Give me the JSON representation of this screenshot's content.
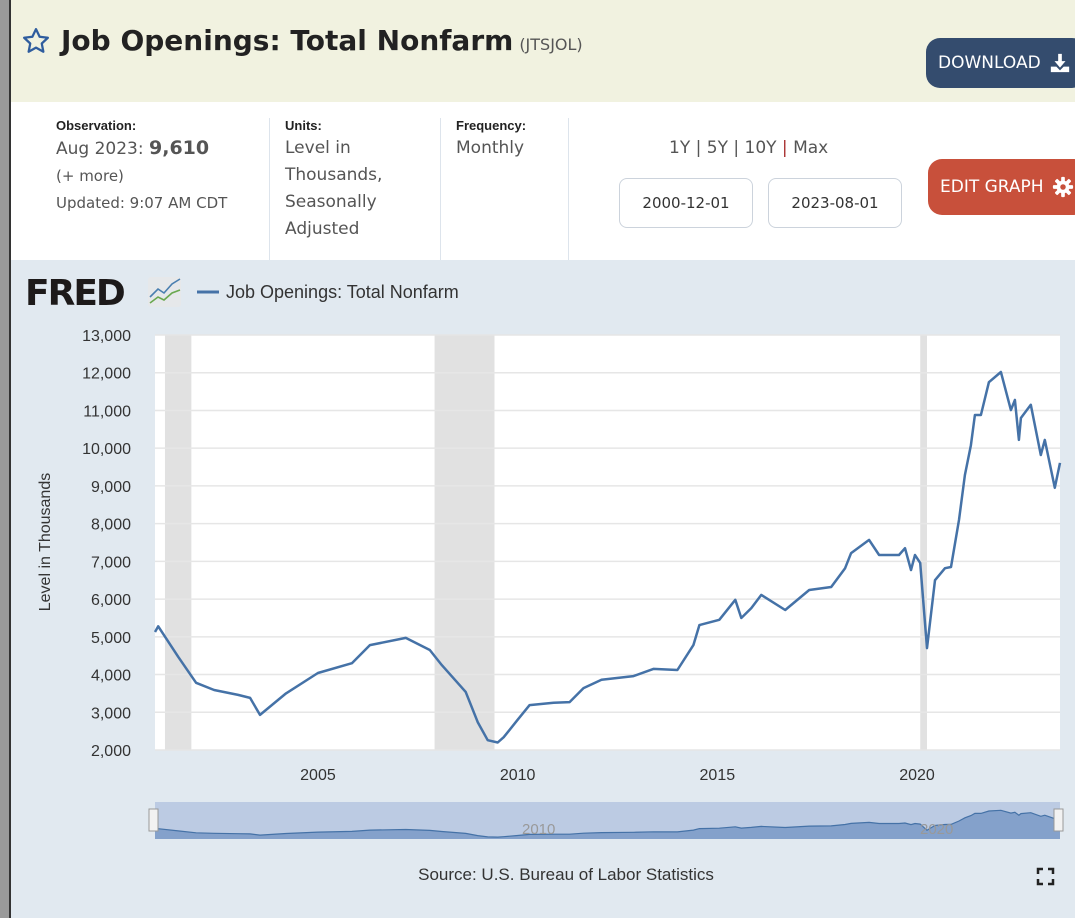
{
  "header": {
    "title": "Job Openings: Total Nonfarm",
    "series_id": "(JTSJOL)",
    "download_label": "DOWNLOAD",
    "edit_graph_label": "EDIT GRAPH"
  },
  "info": {
    "observation_label": "Observation:",
    "observation_date": "Aug 2023:",
    "observation_value": "9,610",
    "more_link": "(+ more)",
    "updated": "Updated: 9:07 AM CDT",
    "units_label": "Units:",
    "units_lines": [
      "Level in",
      "Thousands,",
      "Seasonally",
      "Adjusted"
    ],
    "frequency_label": "Frequency:",
    "frequency_value": "Monthly"
  },
  "range": {
    "options": [
      "1Y",
      "5Y",
      "10Y",
      "Max"
    ],
    "separator": " | ",
    "start_date": "2000-12-01",
    "end_date": "2023-08-01"
  },
  "chart": {
    "logo": "FRED",
    "legend": "Job Openings: Total Nonfarm",
    "source": "Source: U.S. Bureau of Labor Statistics",
    "navigator_labels": [
      "2010",
      "2020"
    ]
  },
  "colors": {
    "line": "#4572a7",
    "recession": "#e1e1e1",
    "download": "#344c6e",
    "edit": "#c8503b"
  },
  "chart_data": {
    "type": "line",
    "title": "Job Openings: Total Nonfarm",
    "xlabel": "",
    "ylabel": "Level in Thousands",
    "xlim": [
      2000.92,
      2023.58
    ],
    "ylim": [
      2000,
      13000
    ],
    "yticks": [
      2000,
      3000,
      4000,
      5000,
      6000,
      7000,
      8000,
      9000,
      10000,
      11000,
      12000,
      13000
    ],
    "ytick_labels": [
      "2,000",
      "3,000",
      "4,000",
      "5,000",
      "6,000",
      "7,000",
      "8,000",
      "9,000",
      "10,000",
      "11,000",
      "12,000",
      "13,000"
    ],
    "xticks": [
      2005,
      2010,
      2015,
      2020
    ],
    "xtick_labels": [
      "2005",
      "2010",
      "2015",
      "2020"
    ],
    "grid": true,
    "legend_position": "top-left",
    "recessions": [
      [
        2001.17,
        2001.83
      ],
      [
        2007.92,
        2009.42
      ],
      [
        2020.08,
        2020.25
      ]
    ],
    "series": [
      {
        "name": "Job Openings: Total Nonfarm",
        "x": [
          2000.92,
          2001.0,
          2001.5,
          2001.95,
          2002.4,
          2003.0,
          2003.3,
          2003.55,
          2004.2,
          2005.0,
          2005.85,
          2006.3,
          2007.2,
          2007.8,
          2008.1,
          2008.7,
          2009.0,
          2009.25,
          2009.5,
          2009.65,
          2010.0,
          2010.3,
          2010.9,
          2011.3,
          2011.65,
          2012.1,
          2012.9,
          2013.4,
          2014.0,
          2014.4,
          2014.55,
          2015.05,
          2015.45,
          2015.6,
          2015.85,
          2016.1,
          2016.7,
          2017.3,
          2017.85,
          2018.2,
          2018.35,
          2018.8,
          2019.05,
          2019.55,
          2019.7,
          2019.85,
          2019.95,
          2020.08,
          2020.25,
          2020.45,
          2020.7,
          2020.85,
          2021.05,
          2021.2,
          2021.35,
          2021.45,
          2021.6,
          2021.8,
          2022.1,
          2022.35,
          2022.45,
          2022.55,
          2022.6,
          2022.85,
          2023.1,
          2023.2,
          2023.45,
          2023.58
        ],
        "values": [
          5128,
          5280,
          4470,
          3780,
          3590,
          3460,
          3380,
          2930,
          3500,
          4040,
          4300,
          4780,
          4970,
          4650,
          4250,
          3540,
          2740,
          2260,
          2200,
          2340,
          2800,
          3190,
          3250,
          3270,
          3640,
          3860,
          3960,
          4150,
          4120,
          4780,
          5310,
          5450,
          5980,
          5500,
          5760,
          6110,
          5710,
          6240,
          6320,
          6820,
          7220,
          7570,
          7170,
          7170,
          7350,
          6770,
          7170,
          6960,
          4700,
          6500,
          6820,
          6850,
          8100,
          9290,
          10080,
          10880,
          10880,
          11750,
          12020,
          11010,
          11280,
          10220,
          10800,
          11150,
          9820,
          10220,
          8950,
          9610
        ]
      }
    ]
  }
}
